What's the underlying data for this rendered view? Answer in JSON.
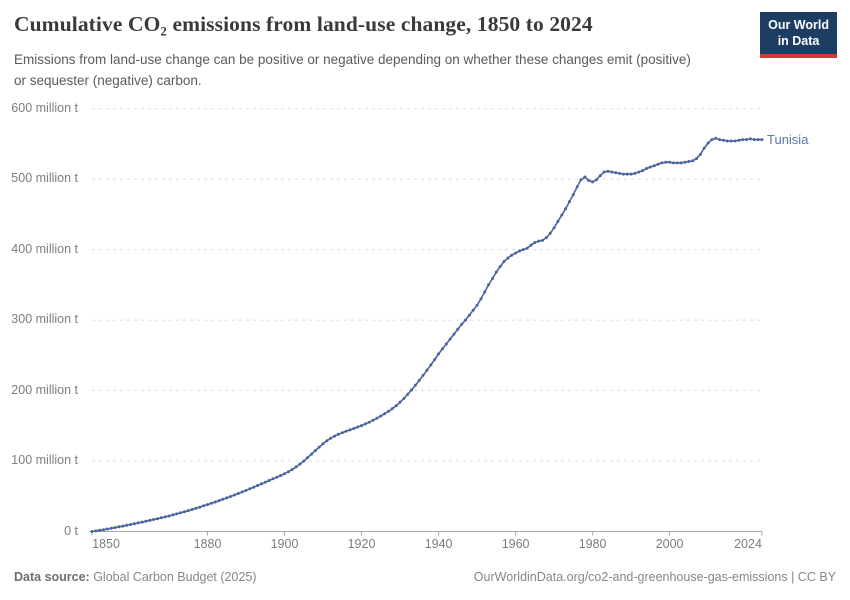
{
  "header": {
    "title": "Cumulative CO₂ emissions from land-use change, 1850 to 2024",
    "subtitle": "Emissions from land-use change can be positive or negative depending on whether these changes emit (positive) or sequester (negative) carbon.",
    "logo_line1": "Our World",
    "logo_line2": "in Data"
  },
  "chart_data": {
    "type": "line",
    "title": "Cumulative CO₂ emissions from land-use change, 1850 to 2024",
    "entity": "Tunisia",
    "unit": "million t",
    "xlim": [
      1850,
      2024
    ],
    "ylim": [
      0,
      600
    ],
    "x_start": 1850,
    "x_step": 1,
    "x_end": 2024,
    "grid": "horizontal-dashed",
    "legend_position": "end-of-line-label",
    "line_color": "#49659b",
    "label_color": "#5878aa",
    "y_ticks": [
      600,
      500,
      400,
      300,
      200,
      100,
      0
    ],
    "y_tick_labels": [
      "600 million t",
      "500 million t",
      "400 million t",
      "300 million t",
      "200 million t",
      "100 million t",
      "0 t"
    ],
    "x_ticks": [
      1850,
      1880,
      1900,
      1920,
      1940,
      1960,
      1980,
      2000,
      2024
    ],
    "x_tick_labels": [
      "1850",
      "1880",
      "1900",
      "1920",
      "1940",
      "1960",
      "1980",
      "2000",
      "2024"
    ],
    "values": [
      0,
      0.8,
      1.7,
      2.6,
      3.5,
      4.5,
      5.5,
      6.6,
      7.7,
      8.8,
      10,
      11.1,
      12.2,
      13.4,
      14.6,
      15.8,
      17,
      18.2,
      19.4,
      20.7,
      22,
      23.5,
      25,
      26.5,
      28,
      29.6,
      31.2,
      32.9,
      34.6,
      36.4,
      38.2,
      40,
      41.9,
      43.8,
      45.7,
      47.7,
      49.7,
      51.8,
      53.9,
      56.1,
      58.3,
      60.6,
      62.9,
      65.2,
      67.5,
      69.9,
      72.3,
      74.7,
      77.1,
      79.5,
      82,
      84.8,
      88,
      91.6,
      95.6,
      100,
      104.8,
      109.8,
      114.8,
      119.8,
      124.6,
      128.8,
      132.4,
      135.4,
      138,
      140.2,
      142.2,
      144.2,
      146.2,
      148.2,
      150.3,
      152.6,
      155.1,
      157.8,
      160.7,
      163.8,
      167.1,
      170.6,
      174.3,
      178.5,
      183.3,
      188.7,
      194.6,
      200.9,
      207.5,
      214.4,
      221.5,
      228.8,
      236.3,
      244,
      252,
      259,
      266,
      273,
      280,
      287,
      294,
      300,
      307,
      314,
      321,
      330,
      340,
      350,
      359,
      368,
      376,
      383,
      388,
      392,
      395,
      398,
      400,
      402,
      406,
      410,
      412,
      413,
      417,
      423,
      431,
      440,
      449,
      458,
      468,
      478,
      489,
      499,
      503,
      498,
      496,
      499,
      505,
      510,
      511,
      510,
      509,
      508,
      507,
      507,
      507,
      508,
      510,
      512,
      515,
      517,
      519,
      521,
      523,
      524,
      524,
      523,
      523,
      523,
      524,
      525,
      526,
      529,
      535,
      544,
      551,
      556,
      558,
      556,
      555,
      554,
      554,
      554,
      555,
      556,
      556,
      557,
      556,
      556,
      556
    ]
  },
  "footer": {
    "source_label": "Data source:",
    "source_value": " Global Carbon Budget (2025)",
    "right_text": "OurWorldinData.org/co2-and-greenhouse-gas-emissions | CC BY"
  }
}
